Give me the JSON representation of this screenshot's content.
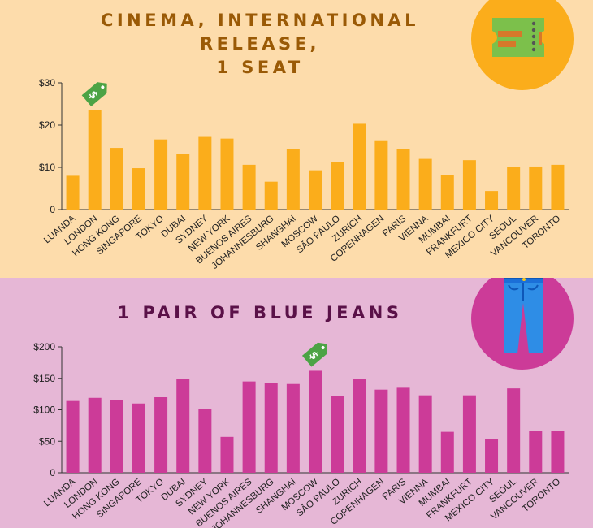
{
  "chart_data": [
    {
      "type": "bar",
      "title": "CINEMA, INTERNATIONAL RELEASE, 1 SEAT",
      "categories": [
        "LUANDA",
        "LONDON",
        "HONG KONG",
        "SINGAPORE",
        "TOKYO",
        "DUBAI",
        "SYDNEY",
        "NEW YORK",
        "BUENOS AIRES",
        "JOHANNESBURG",
        "SHANGHAI",
        "MOSCOW",
        "SÃO PAULO",
        "ZURICH",
        "COPENHAGEN",
        "PARIS",
        "VIENNA",
        "MUMBAI",
        "FRANKFURT",
        "MEXICO CITY",
        "SEOUL",
        "VANCOUVER",
        "TORONTO"
      ],
      "values": [
        8.0,
        23.5,
        14.6,
        9.8,
        16.6,
        13.1,
        17.2,
        16.8,
        10.6,
        6.6,
        14.4,
        9.3,
        11.3,
        20.3,
        16.4,
        14.4,
        12.0,
        8.2,
        11.7,
        4.4,
        10.0,
        10.2,
        10.6
      ],
      "yticks": [
        "0",
        "$10",
        "$20",
        "$30"
      ],
      "ylim": [
        0,
        30
      ],
      "bar_color": "#fbad1b",
      "marker": {
        "category_index": 1,
        "icon": "price-tag-dollar-icon",
        "color": "#4ca345"
      },
      "badge": {
        "icon": "ticket-icon",
        "color": "#fbad1b"
      }
    },
    {
      "type": "bar",
      "title": "1 PAIR OF BLUE JEANS",
      "categories": [
        "LUANDA",
        "LONDON",
        "HONG KONG",
        "SINGAPORE",
        "TOKYO",
        "DUBAI",
        "SYDNEY",
        "NEW YORK",
        "BUENOS AIRES",
        "JOHANNESBURG",
        "SHANGHAI",
        "MOSCOW",
        "SÃO PAULO",
        "ZURICH",
        "COPENHAGEN",
        "PARIS",
        "VIENNA",
        "MUMBAI",
        "FRANKFURT",
        "MEXICO CITY",
        "SEOUL",
        "VANCOUVER",
        "TORONTO"
      ],
      "values": [
        114,
        119,
        115,
        110,
        120,
        149,
        101,
        57,
        145,
        143,
        141,
        162,
        122,
        149,
        132,
        135,
        123,
        65,
        123,
        54,
        134,
        67,
        67
      ],
      "yticks": [
        "0",
        "$50",
        "$100",
        "$150",
        "$200"
      ],
      "ylim": [
        0,
        200
      ],
      "bar_color": "#cc3b98",
      "marker": {
        "category_index": 11,
        "icon": "price-tag-dollar-icon",
        "color": "#4ca345"
      },
      "badge": {
        "icon": "blue-jeans-icon",
        "color": "#cc3b98"
      }
    }
  ]
}
